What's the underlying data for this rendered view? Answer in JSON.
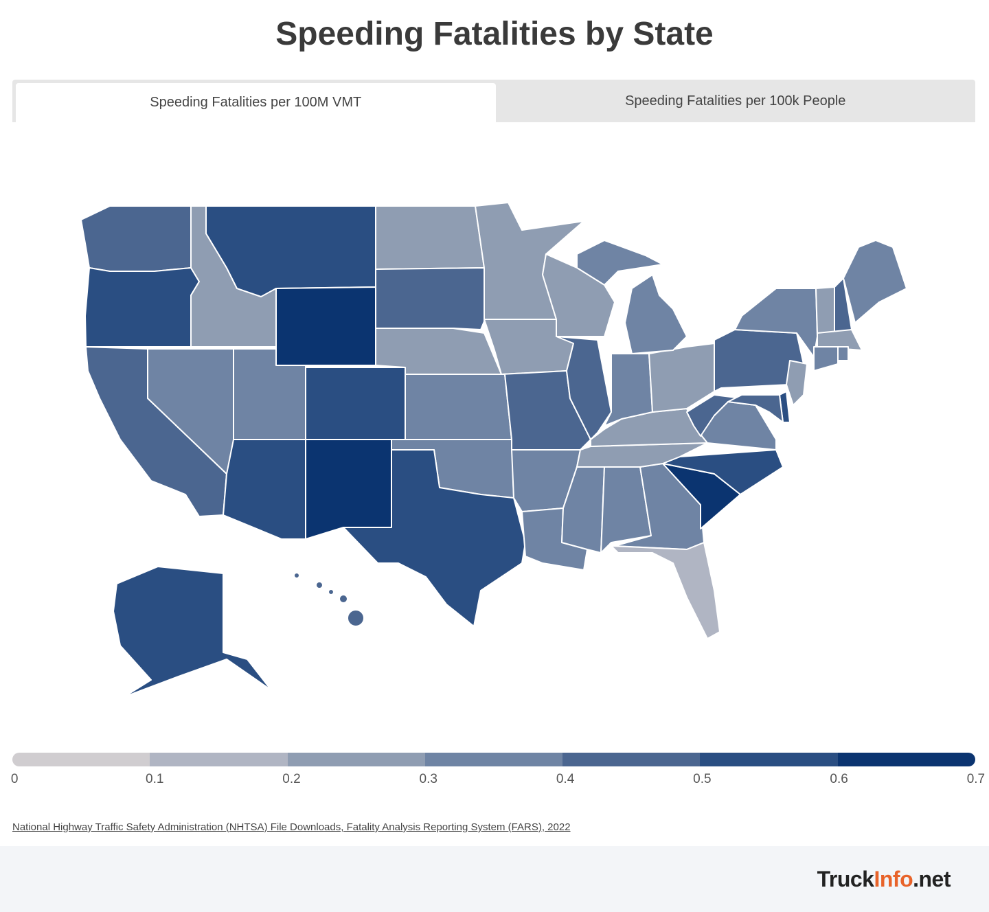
{
  "title": "Speeding Fatalities by State",
  "tabs": [
    {
      "label": "Speeding Fatalities per 100M VMT",
      "active": true
    },
    {
      "label": "Speeding Fatalities per 100k People",
      "active": false
    }
  ],
  "legend": {
    "ticks": [
      "0",
      "0.1",
      "0.2",
      "0.3",
      "0.4",
      "0.5",
      "0.6",
      "0.7"
    ],
    "colors": [
      "#d0cdd0",
      "#b0b5c3",
      "#8f9db2",
      "#6f84a4",
      "#4b6690",
      "#2a4e82",
      "#0b3470"
    ]
  },
  "map_data": {
    "metric": "Speeding Fatalities per 100M VMT",
    "state_bin_lower_bound": {
      "WA": 0.4,
      "OR": 0.5,
      "CA": 0.4,
      "NV": 0.3,
      "ID": 0.2,
      "MT": 0.5,
      "WY": 0.6,
      "UT": 0.3,
      "CO": 0.5,
      "AZ": 0.5,
      "NM": 0.6,
      "ND": 0.2,
      "SD": 0.4,
      "NE": 0.2,
      "KS": 0.3,
      "OK": 0.3,
      "TX": 0.5,
      "MN": 0.2,
      "IA": 0.2,
      "MO": 0.4,
      "AR": 0.3,
      "LA": 0.3,
      "WI": 0.2,
      "IL": 0.4,
      "MI": 0.3,
      "IN": 0.3,
      "OH": 0.2,
      "KY": 0.2,
      "TN": 0.2,
      "MS": 0.3,
      "AL": 0.3,
      "GA": 0.3,
      "FL": 0.1,
      "SC": 0.6,
      "NC": 0.5,
      "VA": 0.3,
      "WV": 0.4,
      "PA": 0.4,
      "NY": 0.3,
      "VT": 0.2,
      "NH": 0.4,
      "ME": 0.3,
      "MA": 0.2,
      "CT": 0.3,
      "RI": 0.3,
      "NJ": 0.2,
      "DE": 0.5,
      "MD": 0.4,
      "AK": 0.5,
      "HI": 0.4
    }
  },
  "source": "National Highway Traffic Safety Administration (NHTSA) File Downloads, Fatality Analysis Reporting System (FARS), 2022",
  "logo": {
    "part1": "Truck",
    "part2": "Info",
    "part3": ".net"
  }
}
